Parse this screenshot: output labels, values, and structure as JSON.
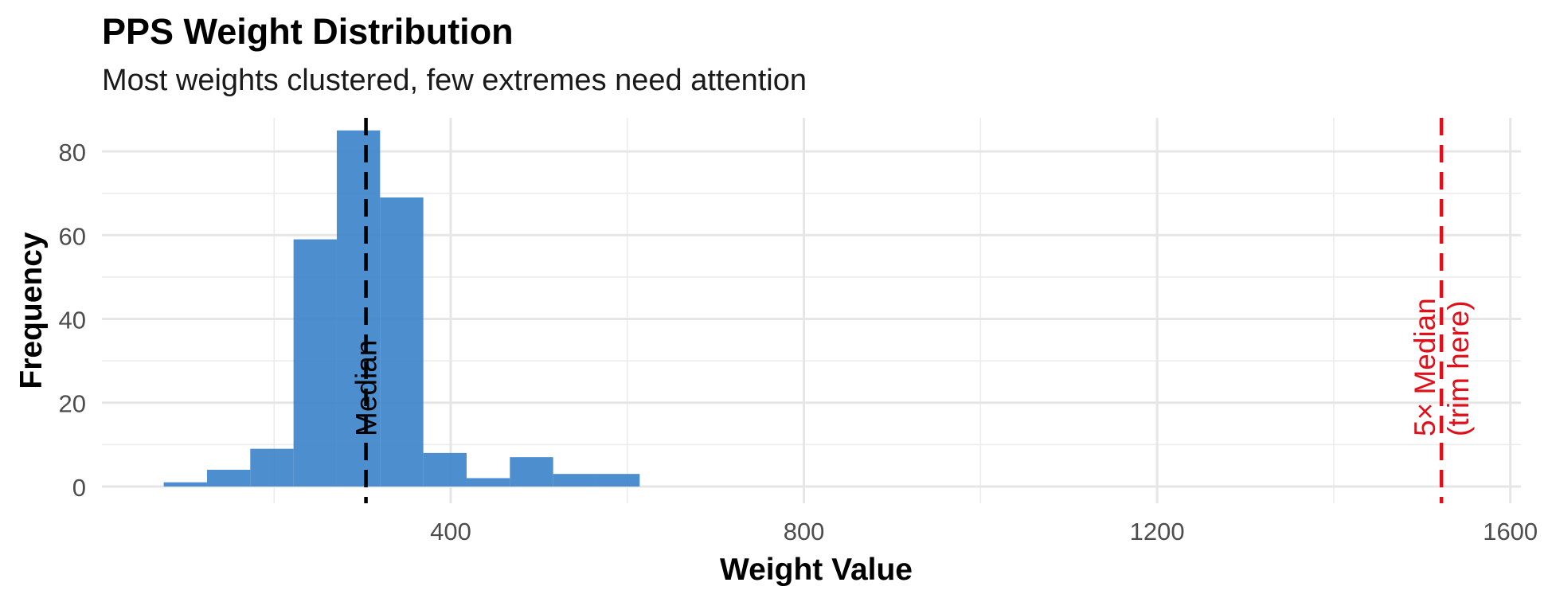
{
  "chart_data": {
    "type": "bar",
    "title": "PPS Weight Distribution",
    "subtitle": "Most weights clustered, few extremes need attention",
    "xlabel": "Weight Value",
    "ylabel": "Frequency",
    "xlim": [
      5,
      1612
    ],
    "ylim": [
      -4,
      88
    ],
    "xticks": [
      400,
      800,
      1200,
      1600
    ],
    "yticks": [
      0,
      20,
      40,
      60,
      80
    ],
    "grid": true,
    "bin_width": 49,
    "bins": [
      {
        "x0": 75,
        "x1": 124,
        "count": 1
      },
      {
        "x0": 124,
        "x1": 173,
        "count": 4
      },
      {
        "x0": 173,
        "x1": 222,
        "count": 9
      },
      {
        "x0": 222,
        "x1": 271,
        "count": 59
      },
      {
        "x0": 271,
        "x1": 320,
        "count": 85
      },
      {
        "x0": 320,
        "x1": 369,
        "count": 69
      },
      {
        "x0": 369,
        "x1": 418,
        "count": 8
      },
      {
        "x0": 418,
        "x1": 467,
        "count": 2
      },
      {
        "x0": 467,
        "x1": 516,
        "count": 7
      },
      {
        "x0": 516,
        "x1": 565,
        "count": 3
      },
      {
        "x0": 565,
        "x1": 614,
        "count": 3
      }
    ],
    "bar_color": "#3a83c9",
    "reference_lines": [
      {
        "name": "median-line",
        "x": 304,
        "color": "#000000",
        "label": [
          "Median"
        ]
      },
      {
        "name": "trim-line",
        "x": 1522,
        "color": "#e0101a",
        "label": [
          "5× Median",
          "(trim here)"
        ]
      }
    ]
  }
}
